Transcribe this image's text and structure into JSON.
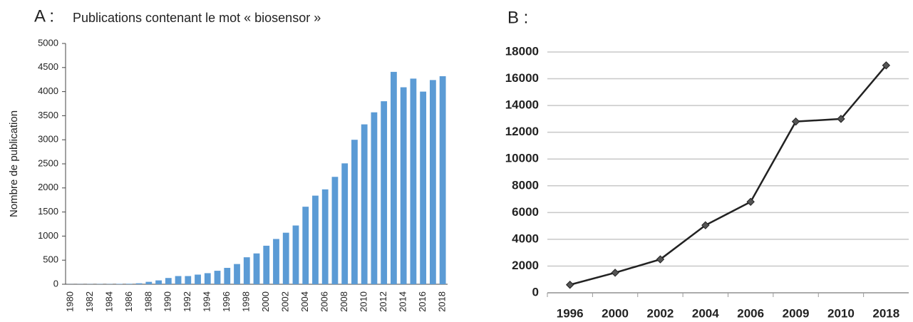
{
  "chart_data": [
    {
      "type": "bar",
      "panel": "A :",
      "title": "Publications contenant le mot « biosensor »",
      "ylabel": "Nombre de publication",
      "categories": [
        "1980",
        null,
        "1982",
        null,
        "1984",
        null,
        "1986",
        null,
        "1988",
        null,
        "1990",
        null,
        "1992",
        null,
        "1994",
        null,
        "1996",
        null,
        "1998",
        null,
        "2000",
        null,
        "2002",
        null,
        "2004",
        null,
        "2006",
        null,
        "2008",
        null,
        "2010",
        null,
        "2012",
        null,
        "2014",
        null,
        "2016",
        null,
        "2018"
      ],
      "values": [
        2,
        3,
        4,
        5,
        5,
        8,
        10,
        20,
        50,
        80,
        130,
        170,
        170,
        200,
        230,
        280,
        340,
        420,
        560,
        640,
        800,
        940,
        1070,
        1220,
        1610,
        1840,
        1970,
        2230,
        2510,
        3000,
        3320,
        3570,
        3800,
        4410,
        4090,
        4270,
        4000,
        4240,
        4320
      ],
      "color": "#5b9bd5",
      "ylim": [
        0,
        5000
      ],
      "yticks": [
        0,
        500,
        1000,
        1500,
        2000,
        2500,
        3000,
        3500,
        4000,
        4500,
        5000
      ],
      "grid": false
    },
    {
      "type": "line",
      "panel": "B :",
      "categories": [
        "1996",
        "2000",
        "2002",
        "2004",
        "2006",
        "2009",
        "2010",
        "2018"
      ],
      "values": [
        600,
        1500,
        2500,
        5050,
        6800,
        12800,
        13000,
        17000
      ],
      "color": "#222222",
      "ylim": [
        0,
        18000
      ],
      "yticks": [
        0,
        2000,
        4000,
        6000,
        8000,
        10000,
        12000,
        14000,
        16000,
        18000
      ],
      "grid": true
    }
  ]
}
